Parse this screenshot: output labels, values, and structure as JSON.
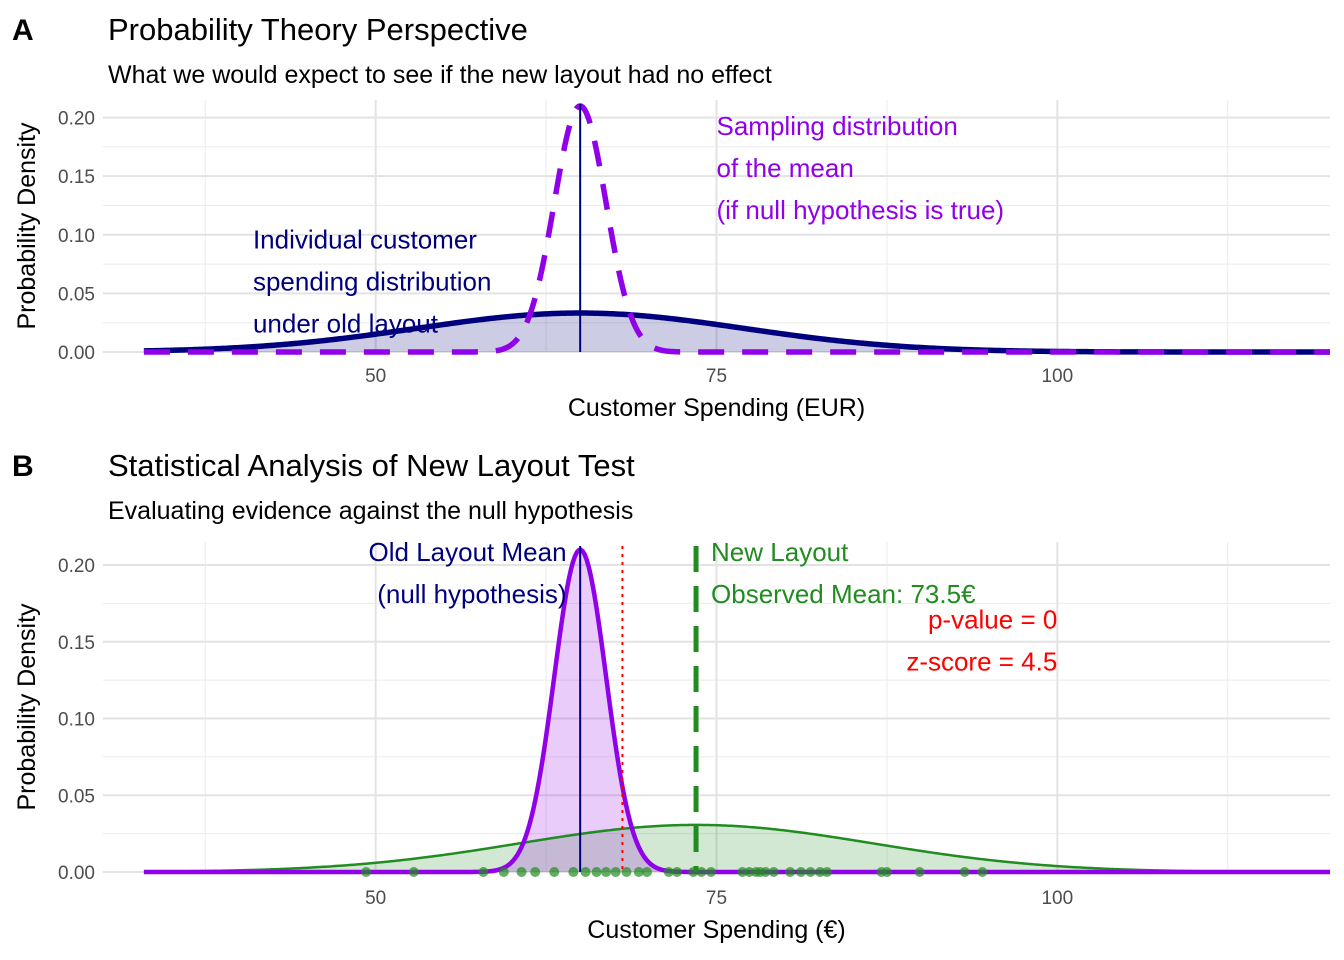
{
  "chart_data": [
    {
      "tag": "A",
      "type": "area",
      "title": "Probability Theory Perspective",
      "subtitle": "What we would expect to see if the new layout had no effect",
      "xlabel": "Customer Spending (EUR)",
      "ylabel": "Probability Density",
      "xlim": [
        30,
        120
      ],
      "ylim": [
        0,
        0.215
      ],
      "x_ticks": [
        50,
        75,
        100
      ],
      "x_tick_labels": [
        "50",
        "75",
        "100"
      ],
      "y_ticks": [
        0,
        0.05,
        0.1,
        0.15,
        0.2
      ],
      "y_tick_labels": [
        "0.00",
        "0.05",
        "0.10",
        "0.15",
        "0.20"
      ],
      "grid": true,
      "curve_domain": [
        33,
        120
      ],
      "series": [
        {
          "kind": "normal",
          "mean": 65,
          "sd": 12,
          "color": "#00007F",
          "fill": "#00007F",
          "style": "solid"
        },
        {
          "kind": "normal",
          "mean": 65,
          "sd": 1.9,
          "color": "#9000E8",
          "fill": "none",
          "style": "dashed"
        }
      ],
      "vlines": [
        {
          "x": 65,
          "color": "#00007F",
          "style": "solid"
        }
      ],
      "annotations": [
        {
          "lines": [
            "Individual customer",
            "spending distribution",
            "under old layout"
          ],
          "x": 41,
          "y": 0.0885,
          "color": "#00007F",
          "anchor": "start"
        },
        {
          "lines": [
            "Sampling distribution",
            "of the mean",
            "(if null hypothesis is true)"
          ],
          "x": 75,
          "y": 0.185,
          "color": "#9000E8",
          "anchor": "start"
        }
      ]
    },
    {
      "tag": "B",
      "type": "area",
      "title": "Statistical Analysis of New Layout Test",
      "subtitle": "Evaluating evidence against the null hypothesis",
      "xlabel": "Customer Spending (€)",
      "ylabel": "Probability Density",
      "xlim": [
        30,
        120
      ],
      "ylim": [
        0,
        0.215
      ],
      "x_ticks": [
        50,
        75,
        100
      ],
      "x_tick_labels": [
        "50",
        "75",
        "100"
      ],
      "y_ticks": [
        0,
        0.05,
        0.1,
        0.15,
        0.2
      ],
      "y_tick_labels": [
        "0.00",
        "0.05",
        "0.10",
        "0.15",
        "0.20"
      ],
      "grid": true,
      "curve_domain": [
        33,
        120
      ],
      "series": [
        {
          "kind": "normal",
          "mean": 73.5,
          "sd": 13,
          "color": "#228B22",
          "fill": "#228B22",
          "style": "solid"
        },
        {
          "kind": "normal",
          "mean": 65,
          "sd": 1.9,
          "color": "#9000E8",
          "fill": "#9000E8",
          "style": "solid"
        }
      ],
      "vlines": [
        {
          "x": 65,
          "color": "#00007F",
          "style": "solid"
        },
        {
          "x": 68.1,
          "color": "#FF0000",
          "style": "dotted"
        },
        {
          "x": 73.5,
          "color": "#228B22",
          "style": "dashed"
        }
      ],
      "points": {
        "color": "#228B22",
        "x": [
          49.3,
          52.8,
          57.9,
          59.4,
          60.7,
          61.7,
          63.1,
          64.5,
          65.4,
          66.2,
          66.9,
          67.6,
          68.4,
          69.3,
          69.9,
          71.5,
          72.1,
          73.3,
          73.9,
          74.6,
          76.9,
          77.4,
          77.9,
          78.2,
          78.6,
          79.2,
          80.4,
          81.2,
          81.9,
          82.6,
          83.1,
          87.1,
          87.5,
          89.9,
          93.2,
          94.5
        ],
        "y": 0
      },
      "annotations": [
        {
          "lines": [
            "Old Layout Mean",
            "(null hypothesis)"
          ],
          "x": 64,
          "y": 0.2025,
          "color": "#00007F",
          "anchor": "end"
        },
        {
          "lines": [
            "New Layout",
            "Observed Mean: 73.5€"
          ],
          "x": 74.6,
          "y": 0.2025,
          "color": "#228B22",
          "anchor": "start"
        },
        {
          "lines": [
            "p-value = 0",
            "z-score = 4.5"
          ],
          "x": 100,
          "y": 0.1585,
          "color": "#FF0000",
          "anchor": "end"
        }
      ]
    }
  ]
}
